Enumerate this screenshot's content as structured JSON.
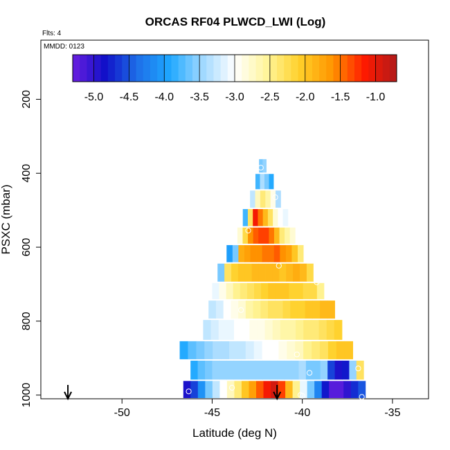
{
  "chart_data": {
    "type": "heatmap",
    "title": "ORCAS RF04 PLWCD_LWI (Log)",
    "flights_label": "Flts: 4",
    "date_label": "MMDD: 0123",
    "xlabel": "Latitude (deg N)",
    "ylabel": "PSXC (mbar)",
    "xlim": [
      -54.5,
      -33
    ],
    "ylim": [
      1010,
      40
    ],
    "x_ticks": [
      -50,
      -45,
      -40,
      -35
    ],
    "x_tick_labels": [
      "-50",
      "-45",
      "-40",
      "-35"
    ],
    "y_ticks": [
      200,
      400,
      600,
      800,
      1000
    ],
    "y_tick_labels": [
      "200",
      "400",
      "600",
      "800",
      "1000"
    ],
    "colorbar": {
      "range": [
        -5.3,
        -0.7
      ],
      "ticks": [
        -5.0,
        -4.5,
        -4.0,
        -3.5,
        -3.0,
        -2.5,
        -2.0,
        -1.5,
        -1.0
      ],
      "tick_labels": [
        "-5.0",
        "-4.5",
        "-4.0",
        "-3.5",
        "-3.0",
        "-2.5",
        "-2.0",
        "-1.5",
        "-1.0"
      ],
      "colors": [
        "#6a1fe0",
        "#1010c8",
        "#1e6fe8",
        "#1ea8ff",
        "#9fd8ff",
        "#ffffff",
        "#fff59a",
        "#ffd02a",
        "#ff9600",
        "#ff1a00",
        "#b01a1a"
      ]
    },
    "layers": [
      {
        "p": 990,
        "x0": -46.6,
        "x1": -36.5,
        "vals": [
          -4.9,
          -4.6,
          -4.1,
          -3.6,
          -3.3,
          -3.0,
          -2.7,
          -2.4,
          -2.0,
          -1.7,
          -1.4,
          -1.1,
          -0.9,
          -1.3,
          -1.9,
          -2.5,
          -3.1,
          -3.6,
          -4.2,
          -4.8,
          -5.2,
          -5.2,
          -5.0,
          -4.7,
          -4.5
        ]
      },
      {
        "p": 930,
        "x0": -46.2,
        "x1": -36.6,
        "vals": [
          -3.9,
          -3.7,
          -3.6,
          -3.5,
          -3.5,
          -3.5,
          -3.5,
          -3.5,
          -3.5,
          -3.5,
          -3.5,
          -3.5,
          -3.5,
          -3.5,
          -3.5,
          -3.4,
          -3.6,
          -3.6,
          -3.5,
          -4.6,
          -4.9,
          -4.8,
          -3.5,
          -2.3
        ]
      },
      {
        "p": 880,
        "x0": -46.8,
        "x1": -37.2,
        "vals": [
          -3.9,
          -3.7,
          -3.6,
          -3.5,
          -3.4,
          -3.4,
          -3.3,
          -3.3,
          -3.2,
          -3.1,
          -3.0,
          -3.0,
          -2.9,
          -2.8,
          -2.7,
          -2.5,
          -2.4,
          -2.3,
          -2.1,
          -2.0,
          -2.0
        ]
      },
      {
        "p": 825,
        "x0": -45.5,
        "x1": -37.8,
        "vals": [
          -3.3,
          -3.2,
          -3.1,
          -3.1,
          -3.0,
          -3.0,
          -2.9,
          -2.9,
          -2.8,
          -2.7,
          -2.6,
          -2.6,
          -2.5,
          -2.4,
          -2.4,
          -2.3,
          -2.2,
          -2.1
        ]
      },
      {
        "p": 765,
        "x0": -45.2,
        "x1": -38.2,
        "vals": [
          -3.3,
          -3.2,
          -3.0,
          -2.9,
          -2.8,
          -2.6,
          -2.5,
          -2.4,
          -2.3,
          -2.3,
          -2.2,
          -2.1,
          -2.1,
          -2.0,
          -2.0,
          -1.9,
          -1.9
        ]
      },
      {
        "p": 720,
        "x0": -45.0,
        "x1": -38.8,
        "vals": [
          -3.1,
          -2.9,
          -2.7,
          -2.5,
          -2.4,
          -2.3,
          -2.2,
          -2.1,
          -2.0,
          -2.0,
          -2.0,
          -2.1,
          -2.1,
          -2.2,
          -2.2,
          -2.5
        ]
      },
      {
        "p": 670,
        "x0": -44.7,
        "x1": -39.0,
        "vals": [
          -3.6,
          -2.3,
          -2.1,
          -2.0,
          -2.0,
          -1.9,
          -1.9,
          -1.9,
          -1.9,
          -2.0,
          -1.9,
          -1.8,
          -1.9,
          -2.2,
          -3.0
        ]
      },
      {
        "p": 615,
        "x0": -44.2,
        "x1": -39.6,
        "vals": [
          -4.0,
          -3.6,
          -1.8,
          -1.7,
          -1.6,
          -1.6,
          -1.5,
          -1.5,
          -1.4,
          -1.6,
          -1.7,
          -2.0,
          -2.4,
          -3.0
        ]
      },
      {
        "p": 570,
        "x0": -43.6,
        "x1": -40.4,
        "vals": [
          -2.8,
          -2.2,
          -1.6,
          -1.4,
          -1.3,
          -1.3,
          -1.5,
          -1.9,
          -2.4,
          -2.6,
          -2.8
        ]
      },
      {
        "p": 520,
        "x0": -43.3,
        "x1": -40.8,
        "vals": [
          -3.8,
          -2.3,
          -1.1,
          -1.5,
          -1.9,
          -2.3,
          -2.8,
          -3.0,
          -3.1
        ]
      },
      {
        "p": 470,
        "x0": -42.9,
        "x1": -41.2,
        "vals": [
          -3.3,
          -2.7,
          -2.4,
          -2.6,
          -2.9,
          -3.4
        ]
      },
      {
        "p": 420,
        "x0": -42.6,
        "x1": -41.6,
        "vals": [
          -3.8,
          -3.4,
          -3.6,
          -3.9
        ]
      },
      {
        "p": 380,
        "x0": -42.4,
        "x1": -42.0,
        "vals": [
          -3.6,
          -3.5
        ]
      }
    ],
    "markers": [
      {
        "lat": -46.3,
        "p": 990
      },
      {
        "lat": -43.9,
        "p": 980
      },
      {
        "lat": -40.1,
        "p": 1000
      },
      {
        "lat": -40.0,
        "p": 1002
      },
      {
        "lat": -36.7,
        "p": 1005
      },
      {
        "lat": -39.6,
        "p": 940
      },
      {
        "lat": -40.3,
        "p": 890
      },
      {
        "lat": -36.9,
        "p": 928
      },
      {
        "lat": -44.2,
        "p": 780
      },
      {
        "lat": -43.4,
        "p": 770
      },
      {
        "lat": -41.3,
        "p": 650
      },
      {
        "lat": -39.2,
        "p": 695
      },
      {
        "lat": -43.0,
        "p": 555
      },
      {
        "lat": -42.3,
        "p": 385
      },
      {
        "lat": -41.5,
        "p": 465
      }
    ],
    "arrows": [
      {
        "lat": -53.0
      },
      {
        "lat": -41.4
      }
    ]
  }
}
